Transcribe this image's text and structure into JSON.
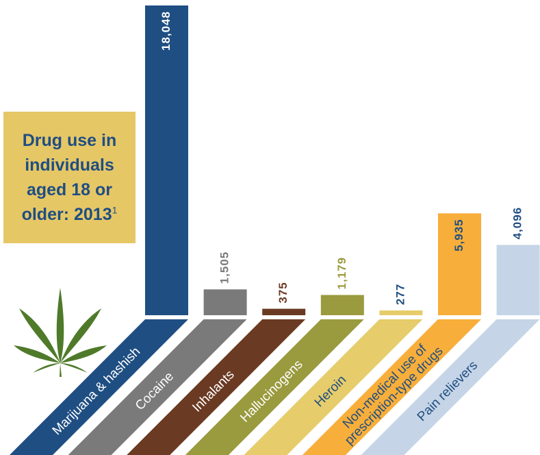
{
  "chart_data": {
    "type": "bar",
    "title": "Drug use in individuals aged 18 or older: 2013",
    "title_note": "1",
    "categories": [
      "Marijuana & hashish",
      "Cocaine",
      "Inhalants",
      "Hallucinogens",
      "Heroin",
      "Non-medical use of prescription-type drugs",
      "Pain relievers"
    ],
    "values": [
      18048,
      1505,
      375,
      1179,
      277,
      5935,
      4096
    ],
    "value_labels": [
      "18,048",
      "1,505",
      "375",
      "1,179",
      "277",
      "5,935",
      "4,096"
    ],
    "colors": [
      "#1f4e82",
      "#7a7a7a",
      "#6b3a22",
      "#9a9a3e",
      "#e6cc6a",
      "#f7ae3a",
      "#c5d4e6"
    ]
  }
}
